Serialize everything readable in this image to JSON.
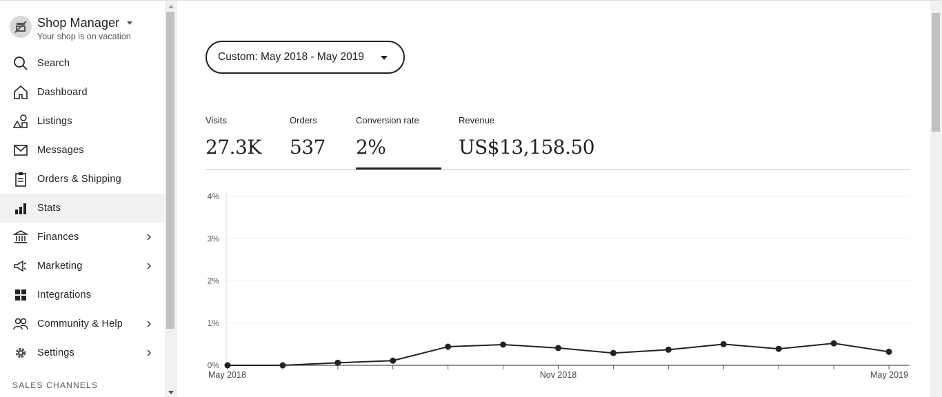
{
  "shop": {
    "title": "Shop Manager",
    "subtitle": "Your shop is on vacation"
  },
  "sidebar": {
    "items": [
      {
        "label": "Search",
        "icon": "search-icon"
      },
      {
        "label": "Dashboard",
        "icon": "home-icon"
      },
      {
        "label": "Listings",
        "icon": "shapes-icon"
      },
      {
        "label": "Messages",
        "icon": "envelope-icon"
      },
      {
        "label": "Orders & Shipping",
        "icon": "clipboard-icon"
      },
      {
        "label": "Stats",
        "icon": "bar-chart-icon",
        "active": true
      },
      {
        "label": "Finances",
        "icon": "bank-icon",
        "has_submenu": true
      },
      {
        "label": "Marketing",
        "icon": "megaphone-icon",
        "has_submenu": true
      },
      {
        "label": "Integrations",
        "icon": "grid-icon"
      },
      {
        "label": "Community & Help",
        "icon": "people-icon",
        "has_submenu": true
      },
      {
        "label": "Settings",
        "icon": "gear-icon",
        "has_submenu": true
      }
    ],
    "section_label": "SALES CHANNELS"
  },
  "date_range": {
    "label": "Custom: May 2018 - May 2019"
  },
  "metrics": [
    {
      "label": "Visits",
      "value": "27.3K"
    },
    {
      "label": "Orders",
      "value": "537"
    },
    {
      "label": "Conversion rate",
      "value": "2%",
      "active": true
    },
    {
      "label": "Revenue",
      "value": "US$13,158.50"
    }
  ],
  "colors": {
    "text": "#222222",
    "active_bg": "#f2f2f2",
    "grid": "#eeeeee"
  },
  "chart_data": {
    "type": "line",
    "x": [
      "May 2018",
      "Jun 2018",
      "Jul 2018",
      "Aug 2018",
      "Sep 2018",
      "Oct 2018",
      "Nov 2018",
      "Dec 2018",
      "Jan 2019",
      "Feb 2019",
      "Mar 2019",
      "Apr 2019",
      "May 2019"
    ],
    "x_tick_labels": [
      "May 2018",
      "Nov 2018",
      "May 2019"
    ],
    "series": [
      {
        "values": [
          0.0,
          0.0,
          0.06,
          0.11,
          0.44,
          0.49,
          0.41,
          0.29,
          0.37,
          0.5,
          0.39,
          0.52,
          0.32
        ]
      }
    ],
    "y_ticks": [
      "0%",
      "1%",
      "2%",
      "3%",
      "4%"
    ],
    "ylim": [
      0,
      4
    ],
    "grid": true
  }
}
